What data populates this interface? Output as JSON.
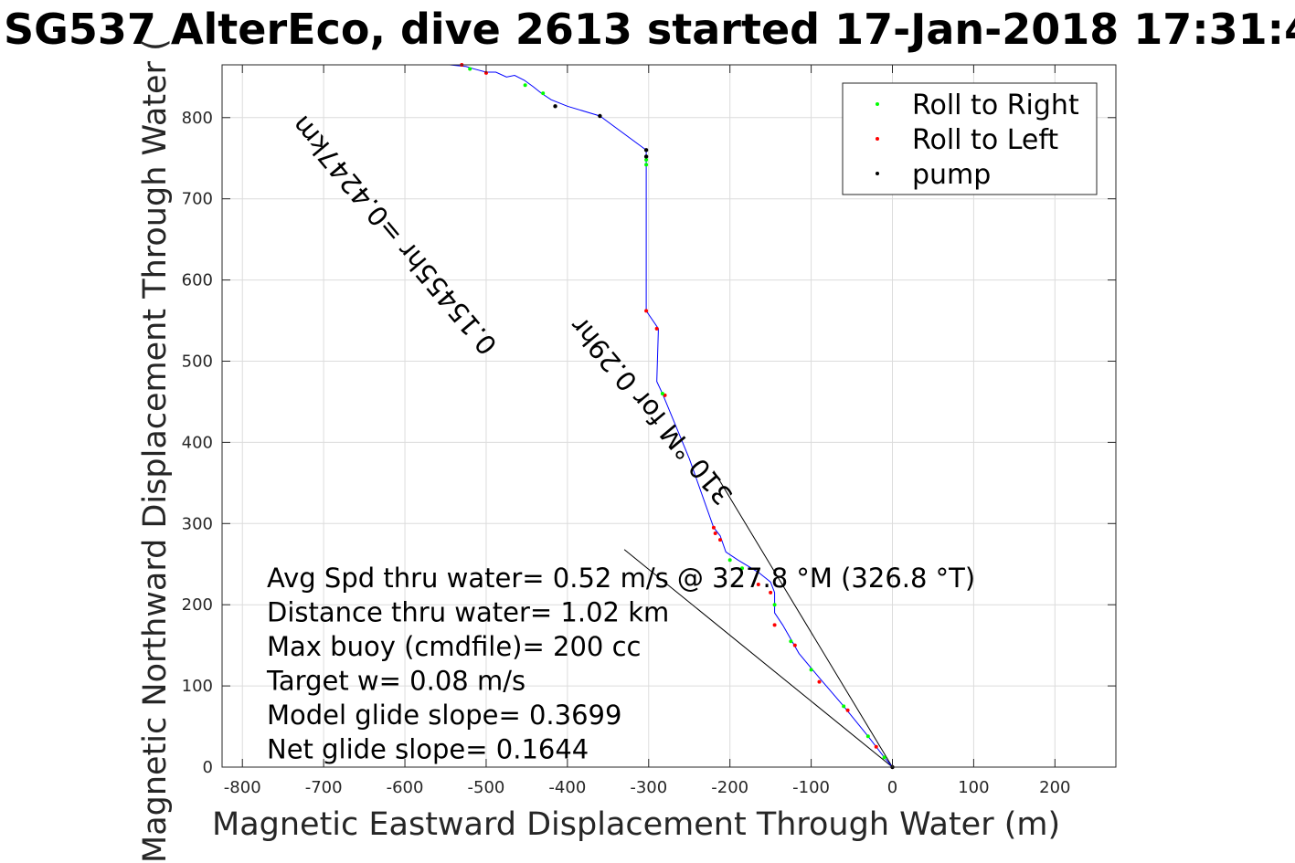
{
  "chart_data": {
    "type": "line",
    "title": "SG537 AlterEco, dive 2613 started 17-Jan-2018 17:31:4",
    "xlabel": "Magnetic Eastward Displacement Through Water (m)",
    "ylabel": "Magnetic Northward Displacement Through Water (",
    "xlim": [
      -825,
      275
    ],
    "ylim": [
      0,
      865
    ],
    "xticks": [
      -800,
      -700,
      -600,
      -500,
      -400,
      -300,
      -200,
      -100,
      0,
      100,
      200
    ],
    "yticks": [
      0,
      100,
      200,
      300,
      400,
      500,
      600,
      700,
      800
    ],
    "grid": true,
    "legend": {
      "placement": "top-right",
      "entries": [
        {
          "label": "Roll to Right",
          "color": "#00ff00"
        },
        {
          "label": "Roll to Left",
          "color": "#ff0000"
        },
        {
          "label": "pump",
          "color": "#000000"
        }
      ]
    },
    "track": {
      "color": "#0000ff",
      "x": [
        0,
        -10,
        -30,
        -60,
        -90,
        -115,
        -135,
        -145,
        -145,
        -150,
        -165,
        -190,
        -205,
        -212,
        -220,
        -250,
        -283,
        -290,
        -288,
        -303,
        -303,
        -303,
        -303,
        -360,
        -400,
        -420,
        -432,
        -442,
        -453,
        -465,
        -475,
        -488,
        -500,
        -515,
        -525,
        -545
      ],
      "y": [
        0,
        12,
        38,
        75,
        110,
        140,
        175,
        190,
        215,
        228,
        240,
        255,
        265,
        285,
        295,
        380,
        460,
        475,
        540,
        562,
        745,
        752,
        760,
        802,
        814,
        822,
        830,
        838,
        846,
        852,
        850,
        856,
        856,
        860,
        863,
        865
      ]
    },
    "roll_right_points": {
      "x": [
        -10,
        -30,
        -60,
        -100,
        -125,
        -145,
        -185,
        -200,
        -283,
        -303,
        -303,
        -430,
        -452,
        -520
      ],
      "y": [
        12,
        38,
        75,
        120,
        155,
        200,
        245,
        255,
        460,
        742,
        748,
        830,
        840,
        860
      ]
    },
    "roll_left_points": {
      "x": [
        0,
        -20,
        -55,
        -90,
        -120,
        -145,
        -150,
        -165,
        -212,
        -218,
        -220,
        -280,
        -290,
        -303,
        -500,
        -530
      ],
      "y": [
        0,
        25,
        70,
        105,
        150,
        175,
        215,
        225,
        280,
        288,
        295,
        458,
        540,
        562,
        855,
        865
      ]
    },
    "pump_points": {
      "x": [
        0,
        -303,
        -303,
        -360,
        -415
      ],
      "y": [
        0,
        752,
        760,
        802,
        814
      ]
    },
    "reference_lines": [
      {
        "x": [
          0,
          -220
        ],
        "y": [
          0,
          365
        ]
      },
      {
        "x": [
          0,
          -330
        ],
        "y": [
          0,
          268
        ]
      }
    ],
    "annotations": [
      "Avg Spd thru water=  0.52 m/s @ 327.8 °M (326.8 °T)",
      "Distance thru water=  1.02 km",
      "Max buoy (cmdfile)= 200 cc",
      "Target w= 0.08 m/s",
      "Model glide slope= 0.3699",
      "Net glide slope= 0.1644"
    ],
    "bearing_labels": [
      {
        "text": "0.15455hr =0.4247km",
        "x": -485,
        "y": 520
      },
      {
        "text": "310 °M for 0.29hr",
        "x": -195,
        "y": 335
      }
    ]
  }
}
